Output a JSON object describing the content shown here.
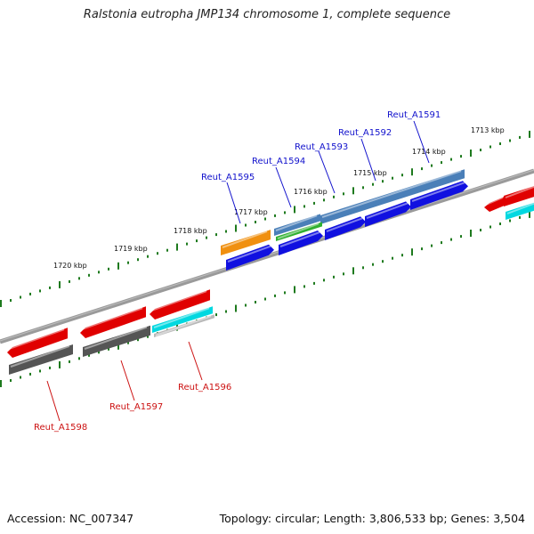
{
  "title": "Ralstonia eutropha JMP134 chromosome 1, complete sequence",
  "footer": {
    "accession": "Accession: NC_007347",
    "topology": "Topology: circular; Length: 3,806,533 bp; Genes: 3,504"
  },
  "scale_labels": [
    "1713 kbp",
    "1714 kbp",
    "1715 kbp",
    "1716 kbp",
    "1717 kbp",
    "1718 kbp",
    "1719 kbp",
    "1720 kbp"
  ],
  "gene_labels": {
    "top": [
      "Reut_A1591",
      "Reut_A1592",
      "Reut_A1593",
      "Reut_A1594",
      "Reut_A1595"
    ],
    "bottom": [
      "Reut_A1596",
      "Reut_A1597",
      "Reut_A1598"
    ]
  },
  "colors": {
    "label_top": "#1111cc",
    "label_bottom": "#cc1111",
    "backbone": "#888888",
    "tick": "#1e7a1e",
    "forward_feature": "#e00000",
    "reverse_feature": "#1010e0",
    "cyan_feature": "#00d8e0",
    "gray_feature": "#555555",
    "orange_feature": "#f09010",
    "steelblue_feature": "#4a7fb8",
    "green_feature": "#30b030"
  }
}
